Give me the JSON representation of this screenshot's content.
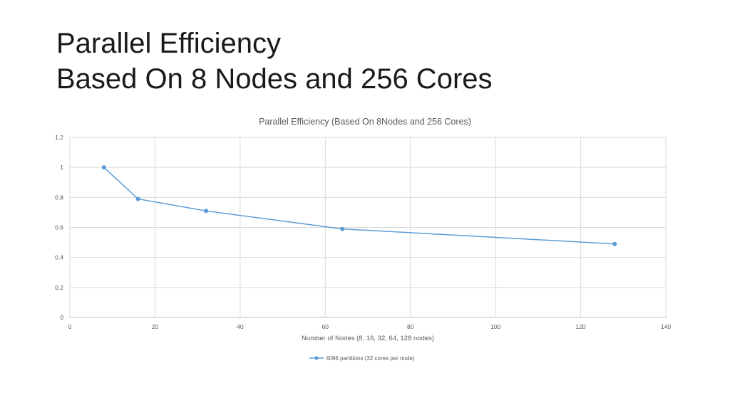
{
  "slide": {
    "title_line1": "Parallel Efficiency",
    "title_line2": "Based On 8 Nodes and 256 Cores"
  },
  "colors": {
    "series": "#5b9bd5",
    "grid": "#d9d9d9",
    "axis_text": "#595959"
  },
  "chart_data": {
    "type": "scatter",
    "title": "Parallel Efficiency (Based On 8Nodes and 256 Cores)",
    "xlabel": "Number of Nodes (8, 16, 32, 64, 128 nodes)",
    "ylabel": "",
    "xlim": [
      0,
      140
    ],
    "ylim": [
      0,
      1.2
    ],
    "x_ticks": [
      0,
      20,
      40,
      60,
      80,
      100,
      120,
      140
    ],
    "y_ticks": [
      0,
      0.2,
      0.4,
      0.6,
      0.8,
      1,
      1.2
    ],
    "grid": true,
    "legend_position": "bottom",
    "series": [
      {
        "name": "4096 partitions (32 cores per node)",
        "line": true,
        "markers": true,
        "x": [
          8,
          16,
          32,
          64,
          128
        ],
        "y": [
          1.0,
          0.79,
          0.71,
          0.59,
          0.49
        ]
      }
    ]
  }
}
